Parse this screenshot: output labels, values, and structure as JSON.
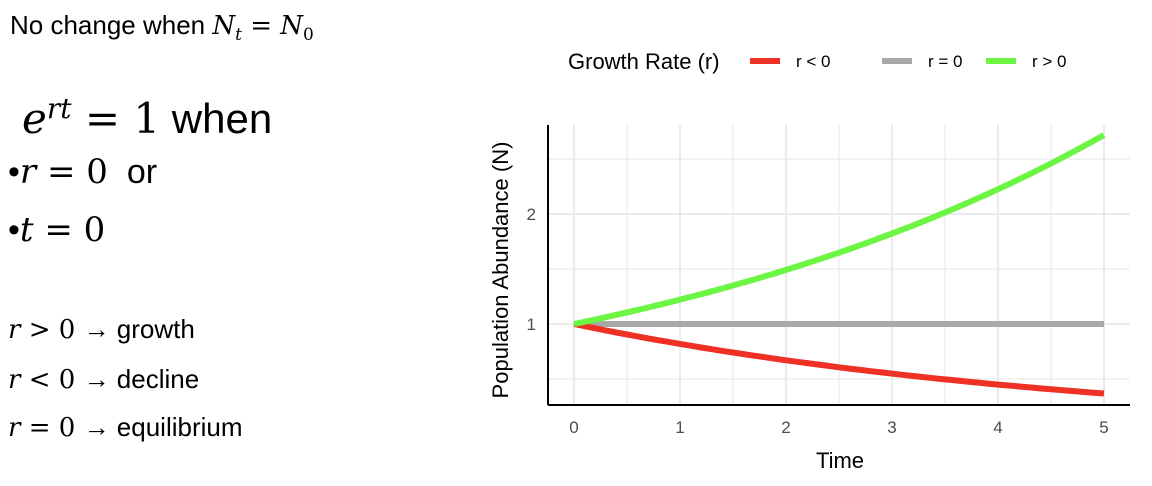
{
  "slide": {
    "line1": {
      "text": "No change when ",
      "math": "N",
      "sub_t": "t",
      "eq": " = ",
      "math2": "N",
      "sub_0": "0"
    },
    "line2": {
      "base": "e",
      "sup": "rt",
      "eq": " = 1",
      "text": " when"
    },
    "bullet1": {
      "bullet": "•",
      "math": "r",
      "eq": " = 0",
      "text": "  or"
    },
    "bullet2": {
      "bullet": "•",
      "math": "t",
      "eq": " = 0"
    },
    "rules": [
      {
        "math": "r",
        "op": " > 0 ",
        "arrow": "→",
        "text": " growth"
      },
      {
        "math": "r",
        "op": " < 0 ",
        "arrow": "→",
        "text": " decline"
      },
      {
        "math": "r",
        "op": " = 0 ",
        "arrow": "→",
        "text": " equilibrium"
      }
    ]
  },
  "chart_data": {
    "type": "line",
    "xlabel": "Time",
    "ylabel": "Population Abundance (N)",
    "xlim": [
      -0.25,
      5.25
    ],
    "ylim": [
      0.26,
      2.81
    ],
    "xticks": [
      "0",
      "1",
      "2",
      "3",
      "4",
      "5"
    ],
    "yticks": [
      "1",
      "2"
    ],
    "grid": true,
    "legend": {
      "title": "Growth Rate (r)",
      "placement": "top"
    },
    "x": [
      0,
      0.5,
      1,
      1.5,
      2,
      2.5,
      3,
      3.5,
      4,
      4.5,
      5
    ],
    "series": [
      {
        "name": "r < 0",
        "color": "#ee3124",
        "values": [
          1,
          0.905,
          0.819,
          0.741,
          0.67,
          0.607,
          0.549,
          0.497,
          0.449,
          0.407,
          0.368
        ]
      },
      {
        "name": "r = 0",
        "color": "#a9a9a9",
        "values": [
          1,
          1,
          1,
          1,
          1,
          1,
          1,
          1,
          1,
          1,
          1
        ]
      },
      {
        "name": "r > 0",
        "color": "#6cf542",
        "values": [
          1,
          1.105,
          1.221,
          1.35,
          1.492,
          1.649,
          1.822,
          2.014,
          2.226,
          2.46,
          2.718
        ]
      }
    ]
  }
}
